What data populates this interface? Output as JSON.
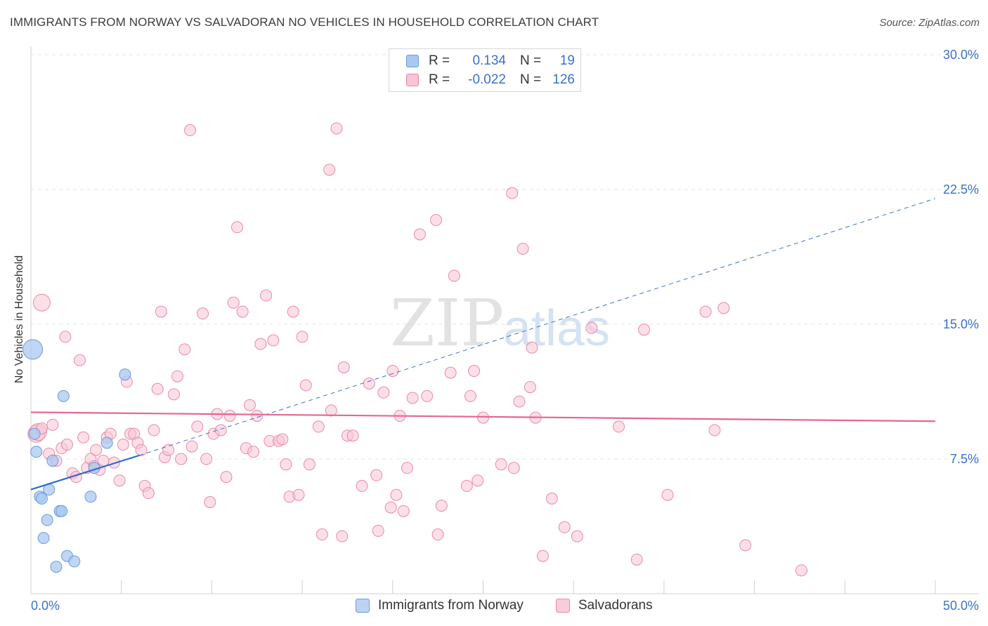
{
  "title": "IMMIGRANTS FROM NORWAY VS SALVADORAN NO VEHICLES IN HOUSEHOLD CORRELATION CHART",
  "source": "Source: ZipAtlas.com",
  "watermark": {
    "zip": "ZIP",
    "atlas": "atlas"
  },
  "legend": {
    "rows": [
      {
        "r_label": "R =",
        "r_value": "0.134",
        "n_label": "N =",
        "n_value": "19",
        "color": "#a9c8f0",
        "border": "#6b9ad8"
      },
      {
        "r_label": "R =",
        "r_value": "-0.022",
        "n_label": "N =",
        "n_value": "126",
        "color": "#f9c4d4",
        "border": "#e88aa6"
      }
    ]
  },
  "bottom_legend": [
    {
      "label": "Immigrants from Norway",
      "color": "#bcd4f3",
      "border": "#6b9ad8"
    },
    {
      "label": "Salvadorans",
      "color": "#f9ccd9",
      "border": "#e88aa6"
    }
  ],
  "chart_data": {
    "type": "scatter",
    "title": "IMMIGRANTS FROM NORWAY VS SALVADORAN NO VEHICLES IN HOUSEHOLD CORRELATION CHART",
    "xlabel": "",
    "ylabel": "No Vehicles in Household",
    "xlim": [
      0,
      50
    ],
    "ylim": [
      0,
      30
    ],
    "x_tick_labels": [
      "0.0%",
      "50.0%"
    ],
    "y_ticks": [
      7.5,
      15.0,
      22.5,
      30.0
    ],
    "y_tick_labels": [
      "7.5%",
      "15.0%",
      "22.5%",
      "30.0%"
    ],
    "grid": "horizontal dashed",
    "legend_position": "top-center",
    "series": [
      {
        "name": "Immigrants from Norway",
        "color": "#6b9ad8",
        "fill": "#a9c8f0",
        "points": [
          [
            0.1,
            13.6,
            14
          ],
          [
            0.2,
            8.9,
            8
          ],
          [
            0.3,
            7.9,
            8
          ],
          [
            0.5,
            5.4,
            8
          ],
          [
            0.6,
            5.3,
            8
          ],
          [
            0.7,
            3.1,
            8
          ],
          [
            0.9,
            4.1,
            8
          ],
          [
            1.0,
            5.8,
            8
          ],
          [
            1.2,
            7.4,
            8
          ],
          [
            1.4,
            1.5,
            8
          ],
          [
            1.6,
            4.6,
            8
          ],
          [
            1.7,
            4.6,
            8
          ],
          [
            1.8,
            11.0,
            8
          ],
          [
            2.0,
            2.1,
            8
          ],
          [
            2.4,
            1.8,
            8
          ],
          [
            3.3,
            5.4,
            8
          ],
          [
            3.5,
            7.0,
            8
          ],
          [
            4.2,
            8.4,
            8
          ],
          [
            5.2,
            12.2,
            8
          ]
        ],
        "trend": {
          "x0": 0,
          "y0": 5.8,
          "x1": 6.0,
          "y1": 7.7,
          "ext_x1": 50,
          "ext_y1": 22.0
        }
      },
      {
        "name": "Salvadorans",
        "color": "#e88aa6",
        "fill": "#f9c4d4",
        "points": [
          [
            0.3,
            8.9,
            12
          ],
          [
            0.4,
            9.0,
            12
          ],
          [
            0.6,
            16.2,
            12
          ],
          [
            0.6,
            9.2,
            8
          ],
          [
            1.0,
            7.8,
            8
          ],
          [
            1.2,
            9.4,
            8
          ],
          [
            1.4,
            7.4,
            8
          ],
          [
            1.7,
            8.1,
            8
          ],
          [
            1.9,
            14.3,
            8
          ],
          [
            2.0,
            8.3,
            8
          ],
          [
            2.3,
            6.7,
            8
          ],
          [
            2.5,
            6.5,
            8
          ],
          [
            2.7,
            13.0,
            8
          ],
          [
            2.9,
            8.7,
            8
          ],
          [
            3.1,
            7.0,
            8
          ],
          [
            3.3,
            7.5,
            8
          ],
          [
            3.5,
            7.1,
            8
          ],
          [
            3.6,
            8.0,
            8
          ],
          [
            3.8,
            6.9,
            8
          ],
          [
            4.0,
            7.4,
            8
          ],
          [
            4.2,
            8.7,
            8
          ],
          [
            4.4,
            8.9,
            8
          ],
          [
            4.6,
            7.3,
            8
          ],
          [
            4.9,
            6.3,
            8
          ],
          [
            5.1,
            8.3,
            8
          ],
          [
            5.3,
            11.8,
            8
          ],
          [
            5.5,
            8.9,
            8
          ],
          [
            5.7,
            8.9,
            8
          ],
          [
            5.9,
            8.4,
            8
          ],
          [
            6.1,
            8.0,
            8
          ],
          [
            6.3,
            6.0,
            8
          ],
          [
            6.5,
            5.6,
            8
          ],
          [
            6.8,
            9.1,
            8
          ],
          [
            7.0,
            11.4,
            8
          ],
          [
            7.2,
            15.7,
            8
          ],
          [
            7.4,
            7.6,
            8
          ],
          [
            7.6,
            8.0,
            8
          ],
          [
            7.9,
            11.1,
            8
          ],
          [
            8.1,
            12.1,
            8
          ],
          [
            8.3,
            7.5,
            8
          ],
          [
            8.5,
            13.6,
            8
          ],
          [
            8.8,
            25.8,
            8
          ],
          [
            8.9,
            8.2,
            8
          ],
          [
            9.2,
            9.3,
            8
          ],
          [
            9.5,
            15.6,
            8
          ],
          [
            9.7,
            7.5,
            8
          ],
          [
            9.9,
            5.1,
            8
          ],
          [
            10.1,
            8.9,
            8
          ],
          [
            10.3,
            10.0,
            8
          ],
          [
            10.5,
            9.1,
            8
          ],
          [
            10.8,
            6.5,
            8
          ],
          [
            11.0,
            9.9,
            8
          ],
          [
            11.2,
            16.2,
            8
          ],
          [
            11.4,
            20.4,
            8
          ],
          [
            11.7,
            15.7,
            8
          ],
          [
            11.9,
            8.1,
            8
          ],
          [
            12.1,
            10.5,
            8
          ],
          [
            12.3,
            7.9,
            8
          ],
          [
            12.5,
            9.9,
            8
          ],
          [
            12.7,
            13.9,
            8
          ],
          [
            13.0,
            16.6,
            8
          ],
          [
            13.2,
            8.5,
            8
          ],
          [
            13.4,
            14.1,
            8
          ],
          [
            13.7,
            8.5,
            8
          ],
          [
            13.9,
            8.6,
            8
          ],
          [
            14.1,
            7.2,
            8
          ],
          [
            14.3,
            5.4,
            8
          ],
          [
            14.5,
            15.7,
            8
          ],
          [
            14.8,
            5.5,
            8
          ],
          [
            15.0,
            14.3,
            8
          ],
          [
            15.2,
            11.6,
            8
          ],
          [
            15.4,
            7.2,
            8
          ],
          [
            15.9,
            9.3,
            8
          ],
          [
            16.1,
            3.3,
            8
          ],
          [
            16.5,
            23.6,
            8
          ],
          [
            16.6,
            10.2,
            8
          ],
          [
            16.9,
            25.9,
            8
          ],
          [
            17.2,
            3.2,
            8
          ],
          [
            17.3,
            12.6,
            8
          ],
          [
            17.5,
            8.8,
            8
          ],
          [
            17.8,
            8.8,
            8
          ],
          [
            18.3,
            6.0,
            8
          ],
          [
            18.7,
            11.7,
            8
          ],
          [
            19.1,
            6.6,
            8
          ],
          [
            19.2,
            3.5,
            8
          ],
          [
            19.5,
            11.2,
            8
          ],
          [
            19.9,
            4.8,
            8
          ],
          [
            20.0,
            12.4,
            8
          ],
          [
            20.2,
            5.5,
            8
          ],
          [
            20.4,
            9.9,
            8
          ],
          [
            20.6,
            4.6,
            8
          ],
          [
            20.8,
            7.0,
            8
          ],
          [
            21.1,
            10.9,
            8
          ],
          [
            21.5,
            20.0,
            8
          ],
          [
            21.9,
            11.0,
            8
          ],
          [
            22.4,
            20.8,
            8
          ],
          [
            22.5,
            3.3,
            8
          ],
          [
            22.7,
            4.9,
            8
          ],
          [
            23.2,
            12.3,
            8
          ],
          [
            23.4,
            17.7,
            8
          ],
          [
            24.1,
            6.0,
            8
          ],
          [
            24.3,
            11.0,
            8
          ],
          [
            24.5,
            12.4,
            8
          ],
          [
            24.7,
            6.3,
            8
          ],
          [
            25.0,
            9.8,
            8
          ],
          [
            26.0,
            7.2,
            8
          ],
          [
            26.6,
            22.3,
            8
          ],
          [
            26.7,
            7.0,
            8
          ],
          [
            27.0,
            10.7,
            8
          ],
          [
            27.2,
            19.2,
            8
          ],
          [
            27.6,
            11.5,
            8
          ],
          [
            27.7,
            13.7,
            8
          ],
          [
            27.9,
            9.8,
            8
          ],
          [
            28.3,
            2.1,
            8
          ],
          [
            28.8,
            5.3,
            8
          ],
          [
            29.5,
            3.7,
            8
          ],
          [
            30.2,
            3.2,
            8
          ],
          [
            31.0,
            14.8,
            8
          ],
          [
            32.5,
            9.3,
            8
          ],
          [
            33.5,
            1.9,
            8
          ],
          [
            33.9,
            14.7,
            8
          ],
          [
            35.2,
            5.5,
            8
          ],
          [
            37.3,
            15.7,
            8
          ],
          [
            37.8,
            9.1,
            8
          ],
          [
            38.3,
            15.9,
            8
          ],
          [
            39.5,
            2.7,
            8
          ],
          [
            42.6,
            1.3,
            8
          ]
        ],
        "trend": {
          "x0": 0,
          "y0": 10.1,
          "x1": 50,
          "y1": 9.6
        }
      }
    ]
  }
}
